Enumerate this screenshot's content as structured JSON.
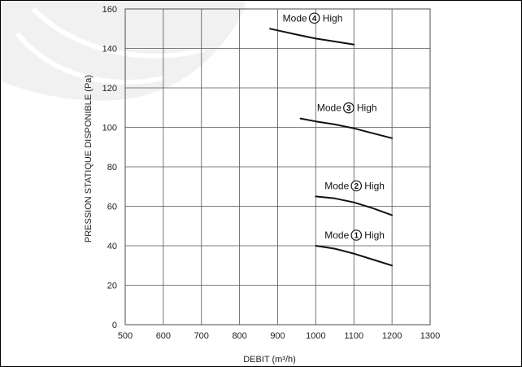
{
  "chart_data": {
    "type": "line",
    "xlabel": "DEBIT (m³/h)",
    "ylabel": "PRESSION STATIQUE DISPONIBLE (Pa)",
    "xlim": [
      500,
      1300
    ],
    "ylim": [
      0,
      160
    ],
    "x_ticks": [
      500,
      600,
      700,
      800,
      900,
      1000,
      1100,
      1200,
      1300
    ],
    "y_ticks": [
      0,
      20,
      40,
      60,
      80,
      100,
      120,
      140,
      160
    ],
    "grid": true,
    "series": [
      {
        "name": "Mode ① High",
        "label_prefix": "Mode",
        "label_number": "1",
        "label_suffix": "High",
        "points": [
          [
            1000,
            40
          ],
          [
            1050,
            38.5
          ],
          [
            1100,
            36
          ],
          [
            1150,
            33
          ],
          [
            1200,
            30
          ]
        ]
      },
      {
        "name": "Mode ② High",
        "label_prefix": "Mode",
        "label_number": "2",
        "label_suffix": "High",
        "points": [
          [
            1000,
            65
          ],
          [
            1050,
            64
          ],
          [
            1100,
            62
          ],
          [
            1150,
            59
          ],
          [
            1200,
            55.5
          ]
        ]
      },
      {
        "name": "Mode ③ High",
        "label_prefix": "Mode",
        "label_number": "3",
        "label_suffix": "High",
        "points": [
          [
            960,
            104.5
          ],
          [
            1000,
            103
          ],
          [
            1050,
            101.5
          ],
          [
            1100,
            99.5
          ],
          [
            1150,
            97
          ],
          [
            1200,
            94.5
          ]
        ]
      },
      {
        "name": "Mode ④ High",
        "label_prefix": "Mode",
        "label_number": "4",
        "label_suffix": "High",
        "points": [
          [
            880,
            150
          ],
          [
            950,
            147
          ],
          [
            1000,
            145
          ],
          [
            1050,
            143.5
          ],
          [
            1100,
            142
          ]
        ]
      }
    ]
  }
}
